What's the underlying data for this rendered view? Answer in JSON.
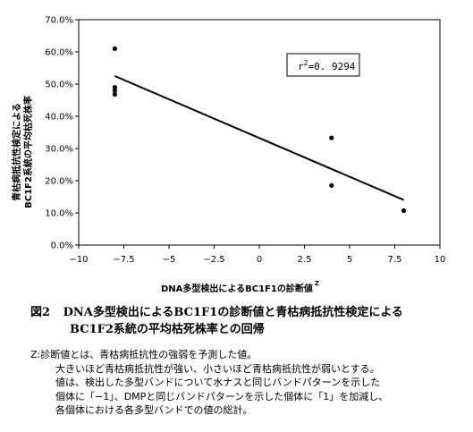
{
  "chart_data": {
    "type": "scatter",
    "ylabel_line1": "青枯病抵抗性検定による",
    "ylabel_line2": "BC1F2系統の平均枯死株率",
    "xlabel": "DNA多型検出によるBC1F1の診断値",
    "xlabel_superscript": "Z",
    "xlim": [
      -10,
      10
    ],
    "ylim": [
      0,
      70
    ],
    "x_ticks": [
      -10,
      -7.5,
      -5,
      -2.5,
      0,
      2.5,
      5,
      7.5,
      10
    ],
    "x_tick_labels": [
      "−10",
      "−7.5",
      "−5",
      "−2.5",
      "0",
      "2.5",
      "5",
      "7.5",
      "10"
    ],
    "y_ticks": [
      0,
      10,
      20,
      30,
      40,
      50,
      60,
      70
    ],
    "y_tick_labels": [
      "0.0%",
      "10.0%",
      "20.0%",
      "30.0%",
      "40.0%",
      "50.0%",
      "60.0%",
      "70.0%"
    ],
    "grid": false,
    "points": [
      {
        "x": -8,
        "y": 61.0
      },
      {
        "x": -8,
        "y": 49.0
      },
      {
        "x": -8,
        "y": 48.0
      },
      {
        "x": -8,
        "y": 46.8
      },
      {
        "x": 4,
        "y": 33.3
      },
      {
        "x": 4,
        "y": 18.5
      },
      {
        "x": 8,
        "y": 10.7
      }
    ],
    "trendline": {
      "x": [
        -8,
        8
      ],
      "y": [
        52.5,
        14.0
      ]
    },
    "annotation": {
      "r_label": "r",
      "r_sup": "2",
      "value_text": "=0. 9294"
    }
  },
  "caption": {
    "fig_number": "図2",
    "line1": "DNA多型検出によるBC1F1の診断値と青枯病抵抗性検定による",
    "line2": "BC1F2系統の平均枯死株率との回帰"
  },
  "note": {
    "lines": [
      "Z:診断値とは、青枯病抵抗性の強弱を予測した値。",
      "大きいほど青枯病抵抗性が強い、小さいほど青枯病抵抗性が弱いとする。",
      "値は、検出した多型バンドについて水ナスと同じバンドパターンを示した",
      "個体に「−1」、DMPと同じバンドパターンを示した個体に「1」を加減し、",
      "各個体における各多型バンドでの値の総計。"
    ]
  }
}
